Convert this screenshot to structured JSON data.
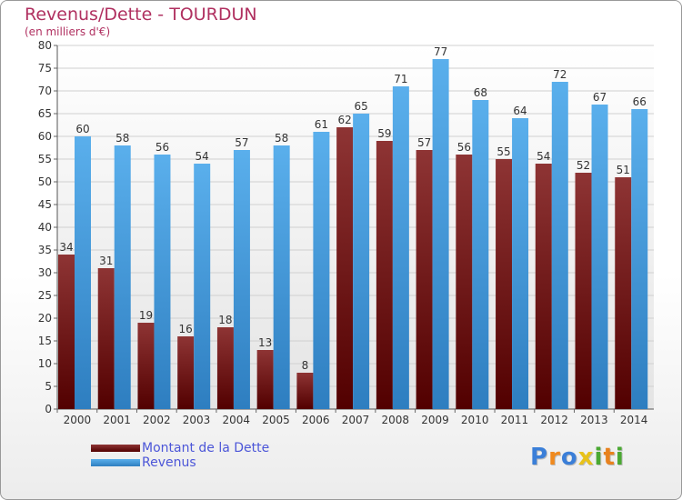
{
  "chart_data": {
    "type": "bar",
    "title": "Revenus/Dette - TOURDUN",
    "subtitle": "(en milliers d'€)",
    "categories": [
      "2000",
      "2001",
      "2002",
      "2003",
      "2004",
      "2005",
      "2006",
      "2007",
      "2008",
      "2009",
      "2010",
      "2011",
      "2012",
      "2013",
      "2014"
    ],
    "series": [
      {
        "name": "Montant de la Dette",
        "values": [
          34,
          31,
          19,
          16,
          18,
          13,
          8,
          62,
          59,
          57,
          56,
          55,
          54,
          52,
          51
        ],
        "color": "#7a1f1f"
      },
      {
        "name": "Revenus",
        "values": [
          60,
          58,
          56,
          54,
          57,
          58,
          61,
          65,
          71,
          77,
          68,
          64,
          72,
          67,
          66
        ],
        "color": "#4a9fe0"
      }
    ],
    "ylim": [
      0,
      80
    ],
    "yticks": [
      0,
      5,
      10,
      15,
      20,
      25,
      30,
      35,
      40,
      45,
      50,
      55,
      60,
      65,
      70,
      75,
      80
    ],
    "grid": true,
    "legend": "bottom-left"
  },
  "brand": {
    "letters": [
      "P",
      "r",
      "o",
      "x",
      "i",
      "t",
      "i"
    ],
    "colors": [
      "#3b7fd8",
      "#f08a1e",
      "#3b7fd8",
      "#e8c21a",
      "#4aa832",
      "#e8821e",
      "#4aa832"
    ]
  }
}
